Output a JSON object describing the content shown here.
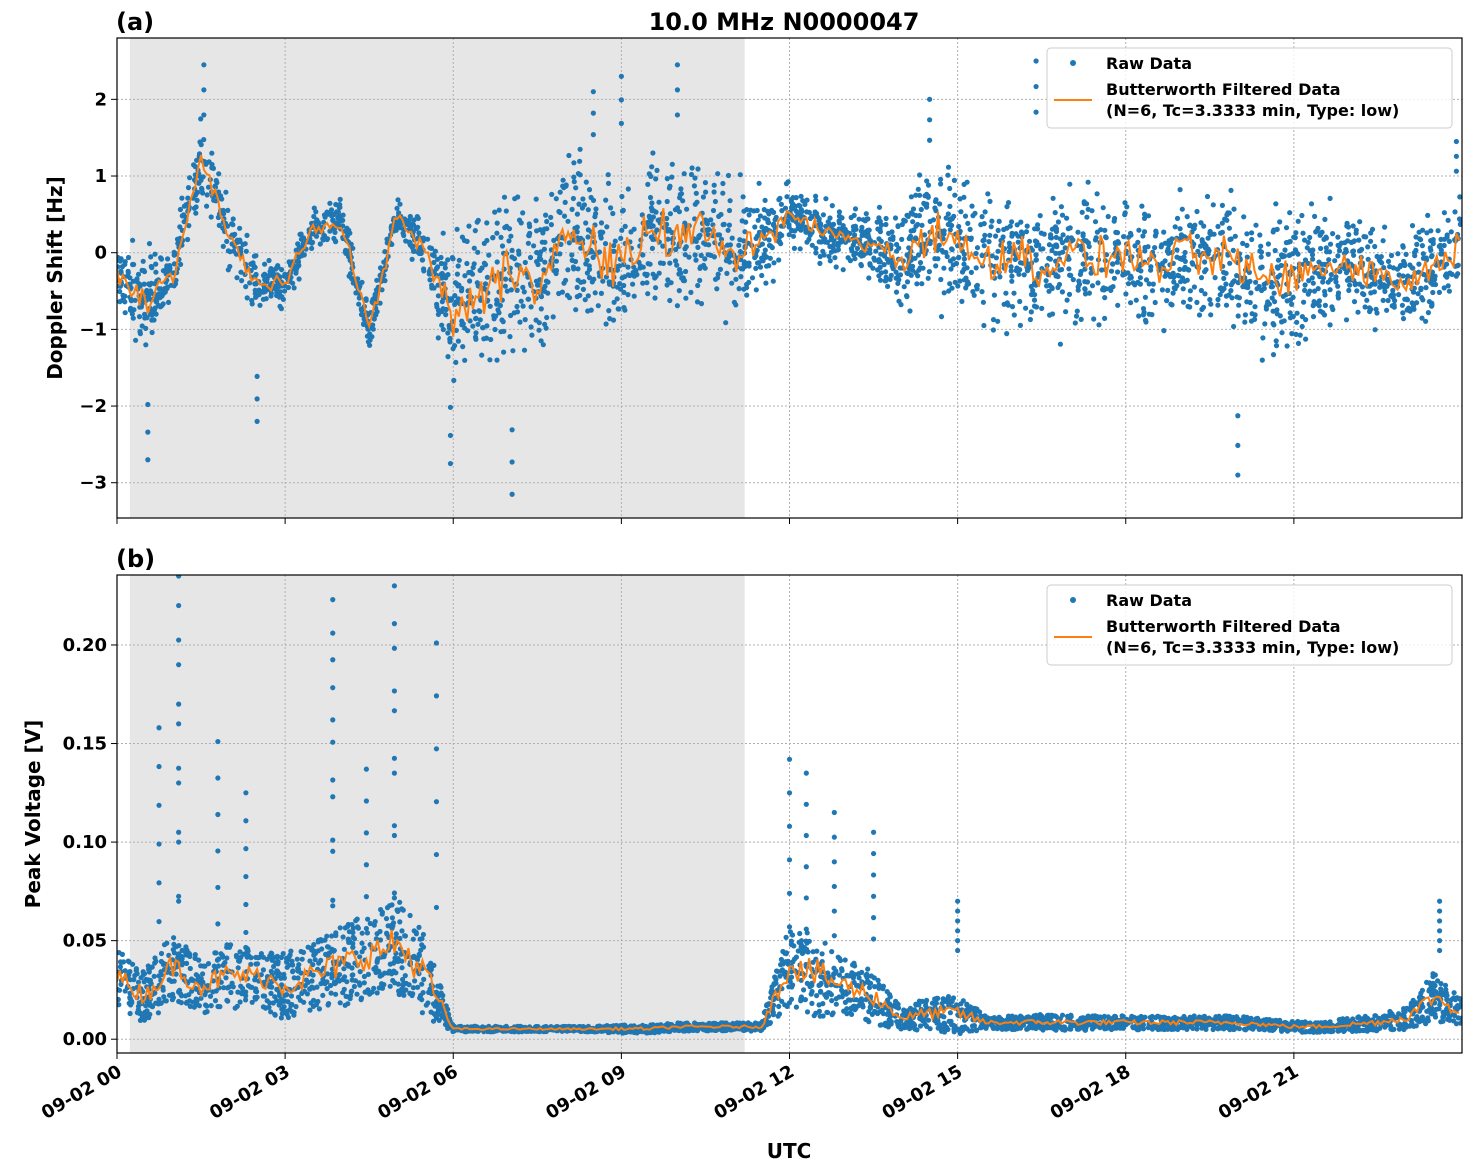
{
  "title": "10.0 MHz N0000047",
  "colors": {
    "raw": "#1f77b4",
    "filtered": "#ff7f0e",
    "night_shade": "#e6e6e6",
    "grid": "#b0b0b0"
  },
  "legend": {
    "raw": "Raw Data",
    "filtered_line1": "Butterworth Filtered Data",
    "filtered_line2": "(N=6, Tc=3.3333 min, Type: low)",
    "placement": "top-right"
  },
  "xlabel": "UTC",
  "x_ticks": [
    "09-02 00",
    "09-02 03",
    "09-02 06",
    "09-02 09",
    "09-02 12",
    "09-02 15",
    "09-02 18",
    "09-02 21"
  ],
  "x_tick_hours": [
    0,
    3,
    6,
    9,
    12,
    15,
    18,
    21
  ],
  "xlim_hours": [
    0,
    24
  ],
  "shaded_interval_hours": [
    0.23,
    11.2
  ],
  "chart_data": [
    {
      "type": "scatter+line",
      "panel": "(a)",
      "ylabel": "Doppler Shift [Hz]",
      "ylim": [
        -3.46,
        2.8
      ],
      "y_ticks": [
        2,
        1,
        0,
        -1,
        -2,
        -3
      ],
      "y_tick_labels": [
        "2",
        "1",
        "0",
        "−1",
        "−2",
        "−3"
      ],
      "grid": true,
      "hours": [
        0,
        0.5,
        1,
        1.5,
        2,
        2.5,
        3,
        3.5,
        4,
        4.5,
        5,
        5.5,
        6,
        6.5,
        7,
        7.5,
        8,
        8.5,
        9,
        9.5,
        10,
        10.5,
        11,
        11.5,
        12,
        12.5,
        13,
        13.5,
        14,
        14.5,
        15,
        15.5,
        16,
        16.5,
        17,
        17.5,
        18,
        18.5,
        19,
        19.5,
        20,
        20.5,
        21,
        21.5,
        22,
        22.5,
        23,
        23.5,
        24
      ],
      "filtered": [
        -0.3,
        -0.6,
        -0.3,
        1.2,
        0.2,
        -0.4,
        -0.4,
        0.3,
        0.4,
        -1.0,
        0.5,
        0.0,
        -0.8,
        -0.6,
        -0.2,
        -0.3,
        0.2,
        0.0,
        -0.2,
        0.3,
        0.2,
        0.3,
        0.0,
        0.1,
        0.5,
        0.3,
        0.2,
        0.1,
        -0.1,
        0.3,
        0.1,
        -0.1,
        0.0,
        -0.2,
        0.0,
        -0.1,
        0.0,
        -0.2,
        0.0,
        -0.1,
        -0.1,
        -0.4,
        -0.3,
        -0.2,
        -0.1,
        -0.3,
        -0.4,
        -0.2,
        0.2
      ],
      "raw_spread": [
        0.5,
        0.9,
        0.5,
        0.9,
        0.6,
        0.5,
        0.4,
        0.4,
        0.4,
        0.5,
        0.3,
        0.5,
        1.4,
        1.4,
        1.5,
        1.4,
        1.5,
        1.4,
        1.4,
        1.4,
        1.3,
        1.3,
        1.2,
        1.0,
        0.5,
        0.5,
        0.5,
        0.6,
        1.0,
        1.2,
        1.2,
        1.2,
        1.2,
        1.2,
        1.2,
        1.1,
        1.1,
        1.1,
        1.1,
        1.1,
        1.2,
        1.2,
        1.3,
        1.1,
        1.0,
        1.0,
        0.9,
        0.9,
        0.9
      ],
      "raw_outliers": [
        [
          1.55,
          2.45
        ],
        [
          0.55,
          -2.7
        ],
        [
          2.5,
          -2.2
        ],
        [
          7.05,
          -3.15
        ],
        [
          5.95,
          -2.75
        ],
        [
          9.0,
          2.3
        ],
        [
          10.0,
          2.45
        ],
        [
          8.5,
          2.1
        ],
        [
          16.4,
          2.5
        ],
        [
          20.0,
          -2.9
        ],
        [
          14.5,
          2.0
        ],
        [
          23.9,
          1.45
        ]
      ]
    },
    {
      "type": "scatter+line",
      "panel": "(b)",
      "ylabel": "Peak Voltage [V]",
      "ylim": [
        -0.007,
        0.2355
      ],
      "y_ticks": [
        0.0,
        0.05,
        0.1,
        0.15,
        0.2
      ],
      "y_tick_labels": [
        "0.00",
        "0.05",
        "0.10",
        "0.15",
        "0.20"
      ],
      "grid": true,
      "hours": [
        0,
        0.5,
        1,
        1.5,
        2,
        2.5,
        3,
        3.5,
        4,
        4.5,
        5,
        5.5,
        6,
        6.5,
        7,
        7.5,
        8,
        8.5,
        9,
        9.5,
        10,
        10.5,
        11,
        11.5,
        12,
        12.5,
        13,
        13.5,
        14,
        14.5,
        15,
        15.5,
        16,
        16.5,
        17,
        17.5,
        18,
        18.5,
        19,
        19.5,
        20,
        20.5,
        21,
        21.5,
        22,
        22.5,
        23,
        23.5,
        24
      ],
      "filtered": [
        0.03,
        0.02,
        0.035,
        0.025,
        0.03,
        0.03,
        0.025,
        0.03,
        0.035,
        0.04,
        0.045,
        0.03,
        0.005,
        0.005,
        0.005,
        0.005,
        0.005,
        0.005,
        0.005,
        0.005,
        0.006,
        0.006,
        0.006,
        0.006,
        0.035,
        0.03,
        0.025,
        0.02,
        0.01,
        0.012,
        0.012,
        0.008,
        0.008,
        0.008,
        0.008,
        0.008,
        0.008,
        0.008,
        0.008,
        0.008,
        0.008,
        0.007,
        0.006,
        0.006,
        0.007,
        0.008,
        0.01,
        0.02,
        0.012
      ],
      "raw_spread": [
        0.02,
        0.02,
        0.025,
        0.02,
        0.025,
        0.02,
        0.025,
        0.025,
        0.03,
        0.03,
        0.035,
        0.03,
        0.002,
        0.002,
        0.002,
        0.002,
        0.002,
        0.002,
        0.003,
        0.003,
        0.003,
        0.003,
        0.003,
        0.003,
        0.03,
        0.03,
        0.02,
        0.02,
        0.008,
        0.012,
        0.015,
        0.005,
        0.005,
        0.006,
        0.006,
        0.005,
        0.005,
        0.005,
        0.005,
        0.005,
        0.005,
        0.004,
        0.004,
        0.004,
        0.005,
        0.006,
        0.008,
        0.018,
        0.01
      ],
      "raw_outliers": [
        [
          1.1,
          0.215
        ],
        [
          1.1,
          0.2
        ],
        [
          0.75,
          0.138
        ],
        [
          1.8,
          0.131
        ],
        [
          2.3,
          0.105
        ],
        [
          3.85,
          0.203
        ],
        [
          3.85,
          0.186
        ],
        [
          4.45,
          0.117
        ],
        [
          4.95,
          0.225
        ],
        [
          4.95,
          0.21
        ],
        [
          5.7,
          0.181
        ],
        [
          12.0,
          0.122
        ],
        [
          12.3,
          0.115
        ],
        [
          12.8,
          0.095
        ],
        [
          13.5,
          0.085
        ],
        [
          15.0,
          0.05
        ],
        [
          23.6,
          0.05
        ]
      ]
    }
  ]
}
